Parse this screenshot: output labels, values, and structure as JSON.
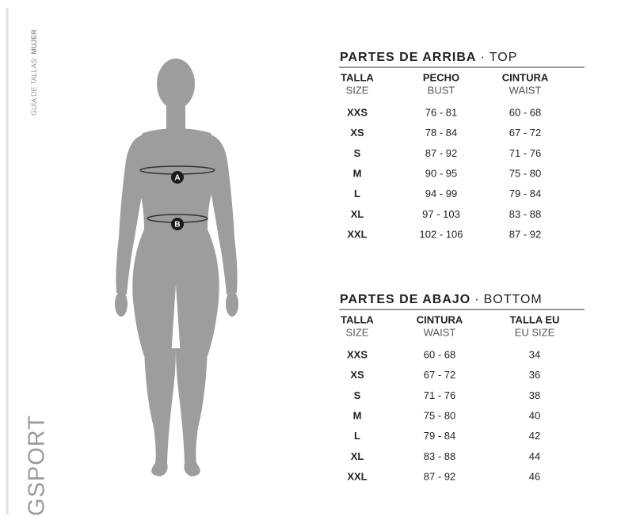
{
  "sidebar": {
    "guide_label": "GUÍA DE TALLAS:",
    "guide_gender": "MUJER",
    "brand": "GSPORT"
  },
  "figure": {
    "markers": [
      "A",
      "B"
    ]
  },
  "tables": [
    {
      "title": "PARTES DE ARRIBA",
      "separator": "·",
      "subtitle": "TOP",
      "columns": [
        {
          "label": "TALLA",
          "sublabel": "SIZE"
        },
        {
          "label": "PECHO",
          "sublabel": "BUST"
        },
        {
          "label": "CINTURA",
          "sublabel": "WAIST"
        }
      ],
      "rows": [
        [
          "XXS",
          "76 - 81",
          "60 - 68"
        ],
        [
          "XS",
          "78 - 84",
          "67 - 72"
        ],
        [
          "S",
          "87 - 92",
          "71 - 76"
        ],
        [
          "M",
          "90 - 95",
          "75 - 80"
        ],
        [
          "L",
          "94 - 99",
          "79 - 84"
        ],
        [
          "XL",
          "97 - 103",
          "83 - 88"
        ],
        [
          "XXL",
          "102 - 106",
          "87 - 92"
        ]
      ]
    },
    {
      "title": "PARTES DE ABAJO",
      "separator": "·",
      "subtitle": "BOTTOM",
      "columns": [
        {
          "label": "TALLA",
          "sublabel": "SIZE"
        },
        {
          "label": "CINTURA",
          "sublabel": "WAIST"
        },
        {
          "label": "TALLA EU",
          "sublabel": "EU SIZE"
        }
      ],
      "rows": [
        [
          "XXS",
          "60 - 68",
          34
        ],
        [
          "XS",
          "67 - 72",
          36
        ],
        [
          "S",
          "71 - 76",
          38
        ],
        [
          "M",
          "75 - 80",
          40
        ],
        [
          "L",
          "79 - 84",
          42
        ],
        [
          "XL",
          "83 - 88",
          44
        ],
        [
          "XXL",
          "87 - 92",
          46
        ]
      ]
    }
  ]
}
